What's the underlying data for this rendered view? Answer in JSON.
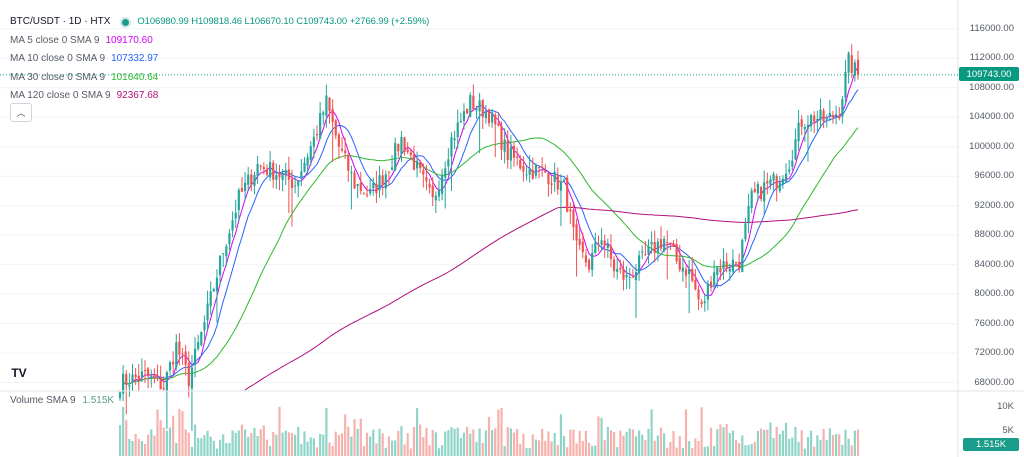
{
  "header": {
    "symbol": "BTC/USDT · 1D · HTX",
    "ohlc": "O106980.99 H109818.46 L106670.10 C109743.00 +2766.99 (+2.59%)"
  },
  "moving_averages": [
    {
      "label": "MA 5 close 0 SMA 9",
      "value": "109170.60",
      "color": "#d500f9"
    },
    {
      "label": "MA 10 close 0 SMA 9",
      "value": "107332.97",
      "color": "#2962ff"
    },
    {
      "label": "MA 30 close 0 SMA 9",
      "value": "101640.64",
      "color": "#2eb82e"
    },
    {
      "label": "MA 120 close 0 SMA 9",
      "value": "92367.68",
      "color": "#b0107a"
    }
  ],
  "collapse_glyph": "︿",
  "logo_text": "TV",
  "volume": {
    "label": "Volume SMA 9",
    "value": "1.515K"
  },
  "price_axis": {
    "ticks": [
      "116000.00",
      "112000.00",
      "108000.00",
      "104000.00",
      "100000.00",
      "96000.00",
      "92000.00",
      "88000.00",
      "84000.00",
      "80000.00",
      "76000.00",
      "72000.00",
      "68000.00"
    ],
    "current_price": "109743.00"
  },
  "volume_axis": {
    "ticks": [
      "10K",
      "5K"
    ],
    "current_badge": "1.515K"
  },
  "colors": {
    "up": "#26a69a",
    "down": "#ef5350",
    "up_vol": "#8fd4c8",
    "down_vol": "#f7b1ad"
  },
  "chart_data": {
    "type": "candlestick",
    "title": "BTC/USDT · 1D · HTX",
    "ylim": [
      67000,
      118000
    ],
    "volume_ylim": [
      0,
      13000
    ],
    "anchors": [
      [
        0,
        68000
      ],
      [
        8,
        69000
      ],
      [
        14,
        67500
      ],
      [
        18,
        73000
      ],
      [
        22,
        68500
      ],
      [
        27,
        76000
      ],
      [
        33,
        86000
      ],
      [
        38,
        93000
      ],
      [
        44,
        97500
      ],
      [
        50,
        96500
      ],
      [
        56,
        95000
      ],
      [
        62,
        101000
      ],
      [
        66,
        106000
      ],
      [
        70,
        100000
      ],
      [
        75,
        95000
      ],
      [
        80,
        93500
      ],
      [
        85,
        96500
      ],
      [
        90,
        101000
      ],
      [
        95,
        97000
      ],
      [
        100,
        92500
      ],
      [
        106,
        101000
      ],
      [
        112,
        106000
      ],
      [
        118,
        104500
      ],
      [
        124,
        99000
      ],
      [
        130,
        97000
      ],
      [
        136,
        96500
      ],
      [
        142,
        94500
      ],
      [
        146,
        86000
      ],
      [
        150,
        84000
      ],
      [
        154,
        88000
      ],
      [
        158,
        83500
      ],
      [
        162,
        82000
      ],
      [
        166,
        84000
      ],
      [
        170,
        86000
      ],
      [
        174,
        87500
      ],
      [
        178,
        84500
      ],
      [
        182,
        83000
      ],
      [
        186,
        78000
      ],
      [
        190,
        83500
      ],
      [
        194,
        84000
      ],
      [
        198,
        84500
      ],
      [
        202,
        93000
      ],
      [
        206,
        94500
      ],
      [
        210,
        95500
      ],
      [
        214,
        98000
      ],
      [
        218,
        103500
      ],
      [
        222,
        104000
      ],
      [
        226,
        103500
      ],
      [
        230,
        105000
      ],
      [
        233,
        111500
      ],
      [
        236,
        109743
      ]
    ],
    "ma_lines": [
      {
        "name": "MA 5",
        "period": 5,
        "color": "#d500f9"
      },
      {
        "name": "MA 10",
        "period": 10,
        "color": "#2962ff"
      },
      {
        "name": "MA 30",
        "period": 30,
        "color": "#2eb82e"
      },
      {
        "name": "MA 120",
        "period": 120,
        "color": "#b0107a"
      }
    ]
  }
}
